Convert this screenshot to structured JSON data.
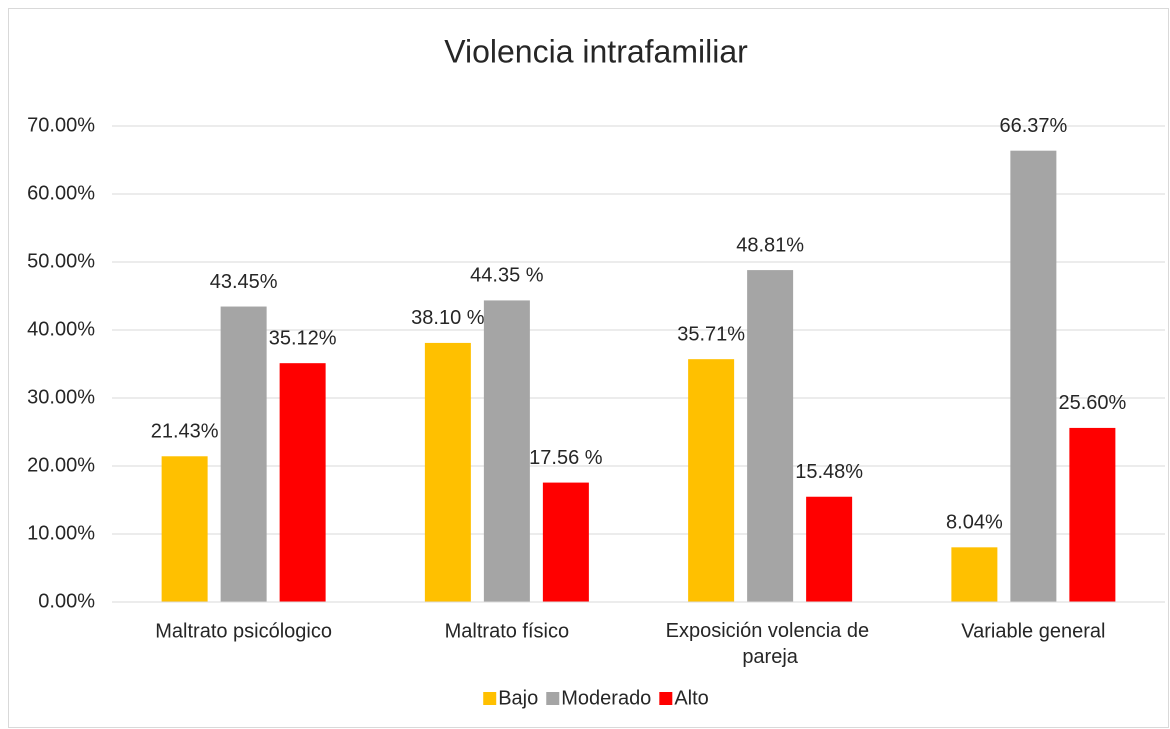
{
  "chart_data": {
    "type": "bar",
    "title": "Violencia intrafamiliar",
    "categories": [
      "Maltrato psicólogico",
      "Maltrato físico",
      "Exposición volencia de pareja",
      "Variable general"
    ],
    "series": [
      {
        "name": "Bajo",
        "color": "#ffc000",
        "values": [
          21.43,
          38.1,
          35.71,
          8.04
        ],
        "value_labels": [
          "21.43%",
          "38.10 %",
          "35.71%",
          "8.04%"
        ]
      },
      {
        "name": "Moderado",
        "color": "#a5a5a5",
        "values": [
          43.45,
          44.35,
          48.81,
          66.37
        ],
        "value_labels": [
          "43.45%",
          "44.35 %",
          "48.81%",
          "66.37%"
        ]
      },
      {
        "name": "Alto",
        "color": "#ff0000",
        "values": [
          35.12,
          17.56,
          15.48,
          25.6
        ],
        "value_labels": [
          "35.12%",
          "17.56 %",
          "15.48%",
          "25.60%"
        ]
      }
    ],
    "ylim": [
      0,
      70
    ],
    "yticks": [
      {
        "value": 0,
        "label": "0.00%"
      },
      {
        "value": 10,
        "label": "10.00%"
      },
      {
        "value": 20,
        "label": "20.00%"
      },
      {
        "value": 30,
        "label": "30.00%"
      },
      {
        "value": 40,
        "label": "40.00%"
      },
      {
        "value": 50,
        "label": "50.00%"
      },
      {
        "value": 60,
        "label": "60.00%"
      },
      {
        "value": 70,
        "label": "70.00%"
      }
    ],
    "grid": true,
    "legend": "bottom"
  }
}
